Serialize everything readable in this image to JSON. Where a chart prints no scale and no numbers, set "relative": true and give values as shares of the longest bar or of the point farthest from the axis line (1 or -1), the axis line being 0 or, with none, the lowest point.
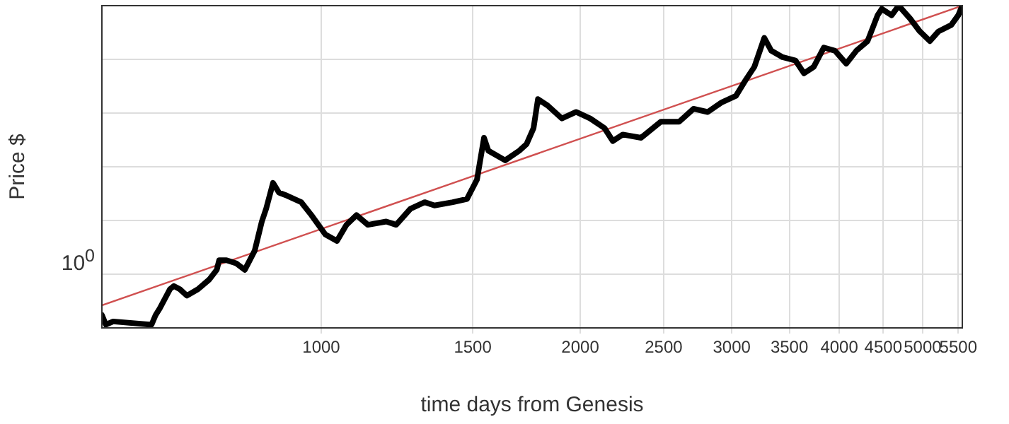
{
  "chart_data": {
    "type": "line",
    "xlabel": "time days from Genesis",
    "ylabel": "Price $",
    "relative": true,
    "log": "x",
    "grid": true,
    "legend": false,
    "marker": "none",
    "line_style": "solid",
    "xlim": [
      556,
      5560
    ],
    "xticks": [
      1000,
      1500,
      2000,
      2500,
      3000,
      3500,
      4000,
      4500,
      5000,
      5500
    ],
    "annotations": [
      "10$^{0}$"
    ],
    "series": [
      {
        "color": "#000000",
        "x": [
          556,
          562,
          573,
          635,
          642,
          649,
          667,
          674,
          685,
          698,
          719,
          741,
          756,
          761,
          776,
          797,
          815,
          837,
          853,
          863,
          879,
          893,
          913,
          948,
          974,
          1011,
          1043,
          1070,
          1099,
          1133,
          1190,
          1222,
          1270,
          1319,
          1354,
          1422,
          1477,
          1517,
          1546,
          1564,
          1636,
          1699,
          1732,
          1765,
          1786,
          1833,
          1904,
          1978,
          2054,
          2134,
          2182,
          2241,
          2354,
          2482,
          2607,
          2708,
          2813,
          2921,
          3034,
          3115,
          3187,
          3273,
          3335,
          3438,
          3557,
          3640,
          3736,
          3838,
          3955,
          4076,
          4187,
          4315,
          4432,
          4482,
          4602,
          4690,
          4835,
          4963,
          5098,
          5216,
          5398,
          5500,
          5560
        ],
        "values": [
          0.04,
          0.01,
          0.02,
          0.01,
          0.04,
          0.06,
          0.12,
          0.13,
          0.12,
          0.1,
          0.12,
          0.15,
          0.18,
          0.21,
          0.21,
          0.2,
          0.18,
          0.24,
          0.33,
          0.37,
          0.45,
          0.42,
          0.41,
          0.39,
          0.35,
          0.29,
          0.27,
          0.32,
          0.35,
          0.32,
          0.33,
          0.32,
          0.37,
          0.39,
          0.38,
          0.39,
          0.4,
          0.46,
          0.59,
          0.55,
          0.52,
          0.55,
          0.57,
          0.62,
          0.71,
          0.69,
          0.65,
          0.67,
          0.65,
          0.62,
          0.58,
          0.6,
          0.59,
          0.64,
          0.64,
          0.68,
          0.67,
          0.7,
          0.72,
          0.77,
          0.81,
          0.9,
          0.86,
          0.84,
          0.83,
          0.79,
          0.81,
          0.87,
          0.86,
          0.82,
          0.86,
          0.89,
          0.97,
          0.99,
          0.97,
          1.0,
          0.96,
          0.92,
          0.89,
          0.92,
          0.94,
          0.97,
          1.0
        ]
      },
      {
        "color": "#d05050",
        "x": [
          556,
          5560
        ],
        "values": [
          0.07,
          1.0
        ]
      }
    ]
  }
}
